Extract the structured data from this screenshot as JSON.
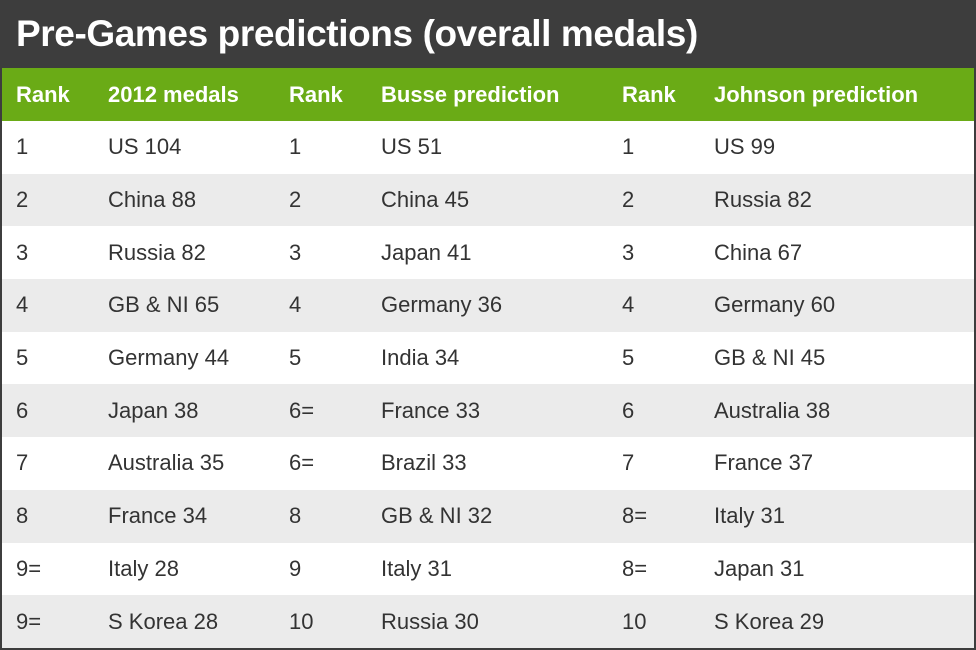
{
  "title": "Pre-Games predictions (overall medals)",
  "colors": {
    "title_bg": "#3d3d3d",
    "header_bg": "#6aab16",
    "stripe": "#ebebeb",
    "text": "#333333"
  },
  "headers": [
    "Rank",
    "2012 medals",
    "Rank",
    "Busse prediction",
    "Rank",
    "Johnson prediction"
  ],
  "rows": [
    [
      "1",
      "US 104",
      "1",
      "US 51",
      "1",
      "US 99"
    ],
    [
      "2",
      "China 88",
      "2",
      "China 45",
      "2",
      "Russia 82"
    ],
    [
      "3",
      "Russia 82",
      "3",
      "Japan 41",
      "3",
      "China 67"
    ],
    [
      "4",
      "GB & NI 65",
      "4",
      "Germany 36",
      "4",
      "Germany 60"
    ],
    [
      "5",
      "Germany 44",
      "5",
      "India 34",
      "5",
      "GB & NI 45"
    ],
    [
      "6",
      "Japan 38",
      "6=",
      "France 33",
      "6",
      "Australia 38"
    ],
    [
      "7",
      "Australia 35",
      "6=",
      "Brazil 33",
      "7",
      "France 37"
    ],
    [
      "8",
      "France 34",
      "8",
      "GB & NI 32",
      "8=",
      "Italy 31"
    ],
    [
      "9=",
      "Italy 28",
      "9",
      "Italy 31",
      "8=",
      "Japan 31"
    ],
    [
      "9=",
      "S Korea 28",
      "10",
      "Russia 30",
      "10",
      "S Korea 29"
    ]
  ]
}
